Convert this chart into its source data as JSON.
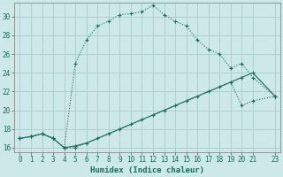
{
  "xlabel": "Humidex (Indice chaleur)",
  "bg_color": "#cce8e8",
  "grid_color": "#b0d0d0",
  "line_color": "#1a6b5a",
  "xlim": [
    -0.5,
    23.5
  ],
  "ylim": [
    15.5,
    31.5
  ],
  "xticks": [
    0,
    1,
    2,
    3,
    4,
    5,
    6,
    7,
    8,
    9,
    10,
    11,
    12,
    13,
    14,
    15,
    16,
    17,
    18,
    19,
    20,
    21,
    23
  ],
  "yticks": [
    16,
    18,
    20,
    22,
    24,
    26,
    28,
    30
  ],
  "series1_x": [
    0,
    1,
    2,
    3,
    4,
    5,
    6,
    7,
    8,
    9,
    10,
    11,
    12,
    13,
    14,
    15,
    16,
    17,
    18,
    19,
    20,
    21,
    23
  ],
  "series1_y": [
    17.0,
    17.2,
    17.5,
    17.0,
    16.0,
    25.0,
    27.5,
    29.0,
    29.5,
    30.2,
    30.3,
    30.5,
    31.2,
    30.2,
    29.5,
    29.0,
    27.5,
    26.5,
    26.0,
    24.5,
    25.0,
    23.5,
    21.5
  ],
  "series2_x": [
    0,
    1,
    2,
    3,
    4,
    5,
    6,
    7,
    8,
    9,
    10,
    11,
    12,
    13,
    14,
    15,
    16,
    17,
    18,
    19,
    20,
    21,
    23
  ],
  "series2_y": [
    17.0,
    17.2,
    17.5,
    17.0,
    16.0,
    16.2,
    16.5,
    17.0,
    17.5,
    18.0,
    18.5,
    19.0,
    19.5,
    20.0,
    20.5,
    21.0,
    21.5,
    22.0,
    22.5,
    23.0,
    23.5,
    24.0,
    21.5
  ],
  "series3_x": [
    0,
    1,
    2,
    3,
    4,
    5,
    19,
    20,
    21,
    23
  ],
  "series3_y": [
    17.0,
    17.2,
    17.5,
    17.0,
    16.0,
    16.0,
    23.0,
    20.5,
    21.0,
    21.5
  ]
}
